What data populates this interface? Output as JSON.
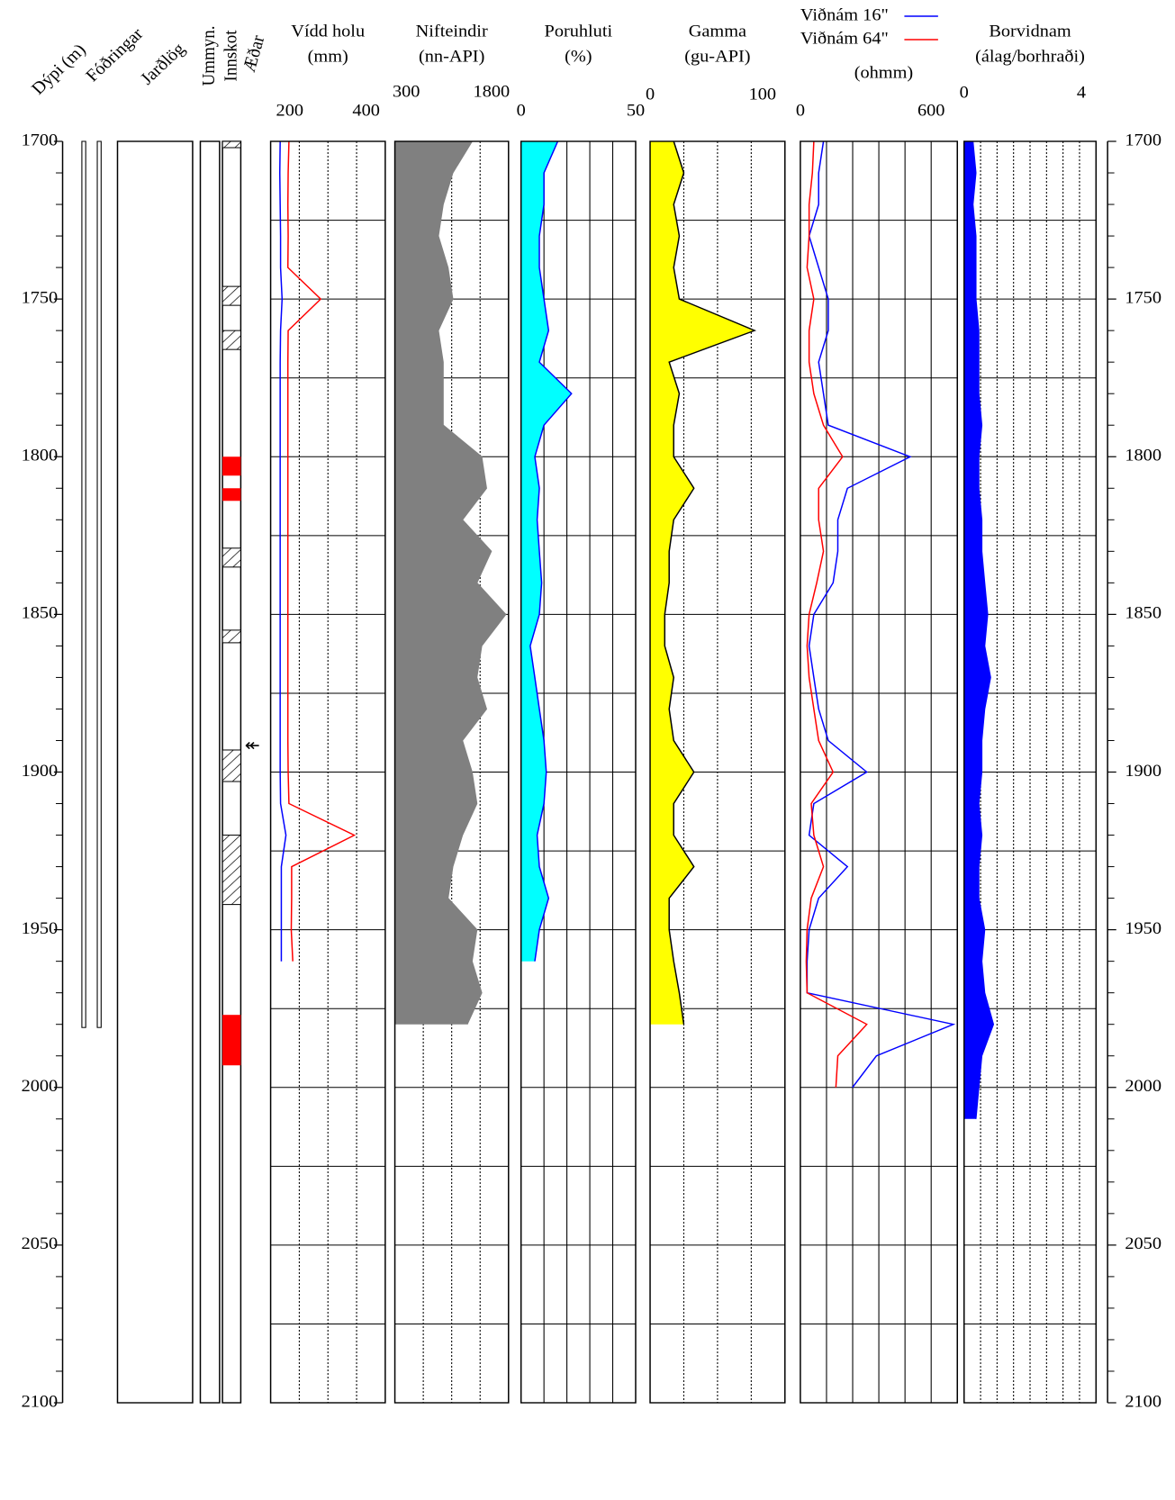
{
  "chart_data": {
    "type": "well-log",
    "ylabel": "Dýpi (m)",
    "ylim": [
      1700,
      2100
    ],
    "yticks": [
      1700,
      1750,
      1800,
      1850,
      1900,
      1950,
      2000,
      2050,
      2100
    ],
    "columns": {
      "casing": {
        "title": "Fóðringar",
        "intervals": [
          [
            1700,
            1981
          ],
          [
            1700,
            1981
          ]
        ]
      },
      "strata": {
        "title": "Jarðlög"
      },
      "alteration": {
        "title": "Ummyn."
      },
      "intrusions": {
        "title": "Innskot",
        "hatched": [
          [
            1700,
            1702
          ],
          [
            1746,
            1752
          ],
          [
            1760,
            1766
          ],
          [
            1829,
            1835
          ],
          [
            1855,
            1859
          ],
          [
            1893,
            1903
          ],
          [
            1920,
            1942
          ]
        ],
        "red": [
          [
            1800,
            1806
          ],
          [
            1810,
            1814
          ],
          [
            1977,
            1993
          ]
        ],
        "red_color": "#ff0000"
      },
      "feedzones": {
        "title": "Æðar",
        "marker": "↞",
        "depths": [
          1892
        ]
      }
    },
    "depth": [
      1700,
      1710,
      1720,
      1730,
      1740,
      1750,
      1760,
      1770,
      1780,
      1790,
      1800,
      1810,
      1820,
      1830,
      1840,
      1850,
      1860,
      1870,
      1880,
      1890,
      1900,
      1910,
      1920,
      1930,
      1940,
      1950,
      1960,
      1970,
      1980,
      1990,
      2000,
      2010
    ],
    "tracks": [
      {
        "title": "Vídd holu",
        "unit": "(mm)",
        "type": "line",
        "xlim": [
          150,
          450
        ],
        "xticks": [
          200,
          400
        ],
        "series": [
          {
            "color": "#0000ff",
            "values": [
              175,
              174,
              175,
              176,
              176,
              180,
              176,
              175,
              175,
              175,
              175,
              175,
              175,
              175,
              175,
              175,
              175,
              175,
              175,
              175,
              175,
              176,
              190,
              178,
              178,
              178,
              178,
              null,
              null,
              null,
              null,
              null
            ]
          },
          {
            "color": "#ff0000",
            "values": [
              198,
              196,
              195,
              196,
              195,
              281,
              196,
              195,
              195,
              195,
              195,
              195,
              195,
              195,
              195,
              195,
              195,
              195,
              195,
              195,
              196,
              198,
              369,
              205,
              205,
              204,
              208,
              null,
              null,
              null,
              null,
              null
            ]
          }
        ]
      },
      {
        "title": "Nifteindir",
        "unit": "(nn-API)",
        "type": "area",
        "xlim": [
          100,
          2100
        ],
        "xticks": [
          300,
          1800
        ],
        "series": [
          {
            "color": "#808080",
            "line_color": "#808080",
            "values": [
              1456,
              1117,
              947,
              863,
              1032,
              1117,
              863,
              947,
              947,
              947,
              1625,
              1710,
              1286,
              1795,
              1541,
              2049,
              1625,
              1541,
              1710,
              1286,
              1456,
              1541,
              1286,
              1117,
              1032,
              1541,
              1456,
              1625,
              1371,
              null,
              null,
              null
            ]
          }
        ]
      },
      {
        "title": "Poruhluti",
        "unit": "(%)",
        "type": "area",
        "xlim": [
          0,
          50
        ],
        "xticks": [
          0,
          50
        ],
        "series": [
          {
            "color": "#00ffff",
            "line_color": "#0000ff",
            "values": [
              16,
              10,
              10,
              8,
              8,
              10,
              12,
              8,
              22,
              10,
              6,
              8,
              7,
              8,
              9,
              8,
              4,
              6,
              8,
              10,
              11,
              10,
              7,
              8,
              12,
              8,
              6,
              null,
              null,
              null,
              null,
              null
            ]
          }
        ]
      },
      {
        "title": "Gamma",
        "unit": "(gu-API)",
        "type": "area",
        "xlim": [
          0,
          120
        ],
        "xticks": [
          0,
          100
        ],
        "series": [
          {
            "color": "#ffff00",
            "line_color": "#000000",
            "values": [
              21,
              30,
              21,
              26,
              21,
              26,
              93,
              17,
              26,
              21,
              21,
              39,
              21,
              17,
              17,
              13,
              13,
              21,
              17,
              21,
              39,
              21,
              21,
              39,
              17,
              17,
              21,
              26,
              30,
              null,
              null,
              null
            ]
          }
        ]
      },
      {
        "unit": "(ohmm)",
        "type": "line",
        "xlim": [
          0,
          720
        ],
        "xticks": [
          0,
          600
        ],
        "series": [
          {
            "name": "Viðnám 16\"",
            "color": "#0000ff",
            "values": [
              106,
              84,
              84,
              40,
              84,
              128,
              128,
              84,
              106,
              128,
              504,
              216,
              172,
              172,
              150,
              62,
              40,
              62,
              84,
              128,
              305,
              62,
              40,
              216,
              84,
              40,
              31,
              31,
              702,
              349,
              239,
              null
            ]
          },
          {
            "name": "Viðnám 64\"",
            "color": "#ff0000",
            "values": [
              62,
              55,
              40,
              40,
              31,
              62,
              40,
              40,
              62,
              106,
              194,
              84,
              84,
              106,
              75,
              40,
              31,
              40,
              62,
              84,
              150,
              50,
              62,
              106,
              50,
              31,
              27,
              31,
              305,
              172,
              163,
              null
            ]
          }
        ]
      },
      {
        "title": "Borvidnam",
        "unit": "(álag/borhraði)",
        "type": "area",
        "xlim": [
          0,
          4.5
        ],
        "xticks": [
          0,
          4
        ],
        "series": [
          {
            "color": "#0000ff",
            "line_color": "#0000ff",
            "values": [
              0.3,
              0.4,
              0.3,
              0.4,
              0.4,
              0.4,
              0.5,
              0.5,
              0.5,
              0.6,
              0.5,
              0.5,
              0.6,
              0.6,
              0.7,
              0.8,
              0.7,
              0.9,
              0.7,
              0.6,
              0.6,
              0.5,
              0.6,
              0.5,
              0.5,
              0.7,
              0.6,
              0.7,
              1.0,
              0.6,
              0.5,
              0.4
            ]
          }
        ]
      }
    ]
  }
}
